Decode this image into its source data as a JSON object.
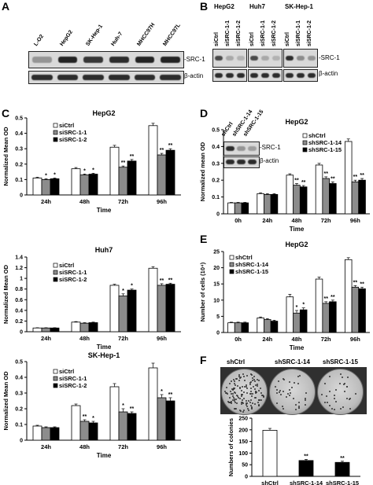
{
  "panels": {
    "A": {
      "letter": "A",
      "lanes": [
        "L-O2",
        "HepG2",
        "SK-Hep-1",
        "Huh-7",
        "MHCC97H",
        "MHCC97L"
      ],
      "labels": [
        "-SRC-1",
        "β-actin"
      ]
    },
    "B": {
      "letter": "B",
      "groups": [
        "HepG2",
        "Huh7",
        "SK-Hep-1"
      ],
      "lanes": [
        "siCtrl",
        "siSRC-1-1",
        "siSRC-1-2"
      ],
      "labels": [
        "-SRC-1",
        "β-actin"
      ]
    },
    "C": {
      "letter": "C"
    },
    "D": {
      "letter": "D",
      "inset_lanes": [
        "shCtrl",
        "shSRC-1-14",
        "shSRC-1-15"
      ],
      "inset_labels": [
        "-SRC-1",
        "β-actin"
      ]
    },
    "E": {
      "letter": "E"
    },
    "F": {
      "letter": "F",
      "plate_labels": [
        "shCtrl",
        "shSRC-1-14",
        "shSRC-1-15"
      ]
    }
  },
  "chart_data": [
    {
      "id": "C1",
      "type": "bar",
      "title": "HepG2",
      "xlabel": "Time",
      "ylabel": "Normalized Mean OD",
      "categories": [
        "24h",
        "48h",
        "72h",
        "96h"
      ],
      "ylim": [
        0,
        0.5
      ],
      "yticks": [
        0,
        0.1,
        0.2,
        0.3,
        0.4,
        0.5
      ],
      "series": [
        {
          "name": "siCtrl",
          "values": [
            0.11,
            0.17,
            0.31,
            0.45
          ],
          "errors": [
            0.005,
            0.008,
            0.012,
            0.015
          ]
        },
        {
          "name": "siSRC-1-1",
          "values": [
            0.1,
            0.13,
            0.18,
            0.26
          ],
          "errors": [
            0.005,
            0.006,
            0.008,
            0.01
          ]
        },
        {
          "name": "siSRC-1-2",
          "values": [
            0.105,
            0.135,
            0.22,
            0.29
          ],
          "errors": [
            0.005,
            0.006,
            0.01,
            0.01
          ]
        }
      ],
      "annotations": [
        [
          "",
          "*",
          "*"
        ],
        [
          "",
          "*",
          "*"
        ],
        [
          "",
          "**",
          "**"
        ],
        [
          "",
          "**",
          "**"
        ]
      ]
    },
    {
      "id": "C2",
      "type": "bar",
      "title": "Huh7",
      "xlabel": "Time",
      "ylabel": "Normalized Mean OD",
      "categories": [
        "24h",
        "48h",
        "72h",
        "96h"
      ],
      "ylim": [
        0,
        1.4
      ],
      "yticks": [
        0,
        0.2,
        0.4,
        0.6,
        0.8,
        1.0,
        1.2,
        1.4
      ],
      "series": [
        {
          "name": "siCtrl",
          "values": [
            0.07,
            0.18,
            0.87,
            1.19
          ],
          "errors": [
            0.005,
            0.01,
            0.02,
            0.03
          ]
        },
        {
          "name": "siSRC-1-1",
          "values": [
            0.07,
            0.16,
            0.67,
            0.87
          ],
          "errors": [
            0.005,
            0.01,
            0.04,
            0.03
          ]
        },
        {
          "name": "siSRC-1-2",
          "values": [
            0.07,
            0.17,
            0.78,
            0.89
          ],
          "errors": [
            0.005,
            0.01,
            0.02,
            0.02
          ]
        }
      ],
      "annotations": [
        [
          "",
          "",
          ""
        ],
        [
          "",
          "",
          ""
        ],
        [
          "",
          "*",
          "*"
        ],
        [
          "",
          "**",
          "**"
        ]
      ]
    },
    {
      "id": "C3",
      "type": "bar",
      "title": "SK-Hep-1",
      "xlabel": "Time",
      "ylabel": "Normalized Mean OD",
      "categories": [
        "24h",
        "48h",
        "72h",
        "96h"
      ],
      "ylim": [
        0,
        0.5
      ],
      "yticks": [
        0,
        0.1,
        0.2,
        0.3,
        0.4,
        0.5
      ],
      "series": [
        {
          "name": "siCtrl",
          "values": [
            0.09,
            0.22,
            0.34,
            0.46
          ],
          "errors": [
            0.005,
            0.01,
            0.02,
            0.03
          ]
        },
        {
          "name": "siSRC-1-1",
          "values": [
            0.08,
            0.12,
            0.18,
            0.27
          ],
          "errors": [
            0.005,
            0.01,
            0.02,
            0.02
          ]
        },
        {
          "name": "siSRC-1-2",
          "values": [
            0.08,
            0.11,
            0.17,
            0.25
          ],
          "errors": [
            0.005,
            0.01,
            0.01,
            0.02
          ]
        }
      ],
      "annotations": [
        [
          "",
          "",
          ""
        ],
        [
          "",
          "**",
          "*"
        ],
        [
          "",
          "*",
          "**"
        ],
        [
          "",
          "*",
          "**"
        ]
      ]
    },
    {
      "id": "D",
      "type": "bar",
      "title": "HepG2",
      "xlabel": "Time",
      "ylabel": "Normalized mean OD",
      "categories": [
        "0h",
        "24h",
        "48h",
        "72h",
        "96h"
      ],
      "ylim": [
        0,
        0.5
      ],
      "yticks": [
        0,
        0.1,
        0.2,
        0.3,
        0.4,
        0.5
      ],
      "series": [
        {
          "name": "shCtrl",
          "values": [
            0.065,
            0.12,
            0.23,
            0.29,
            0.43
          ],
          "errors": [
            0.003,
            0.005,
            0.008,
            0.01,
            0.015
          ]
        },
        {
          "name": "shSRC-1-14",
          "values": [
            0.065,
            0.115,
            0.17,
            0.21,
            0.19
          ],
          "errors": [
            0.003,
            0.005,
            0.01,
            0.01,
            0.01
          ]
        },
        {
          "name": "shSRC-1-15",
          "values": [
            0.065,
            0.115,
            0.16,
            0.18,
            0.2
          ],
          "errors": [
            0.003,
            0.005,
            0.008,
            0.01,
            0.01
          ]
        }
      ],
      "annotations": [
        [
          "",
          "",
          ""
        ],
        [
          "",
          "",
          ""
        ],
        [
          "",
          "**",
          "**"
        ],
        [
          "",
          "**",
          "**"
        ],
        [
          "",
          "**",
          "**"
        ]
      ]
    },
    {
      "id": "E",
      "type": "bar",
      "title": "HepG2",
      "xlabel": "Time",
      "ylabel": "Number of cells (10⁴)",
      "categories": [
        "0h",
        "24h",
        "48h",
        "72h",
        "96h"
      ],
      "ylim": [
        0,
        25
      ],
      "yticks": [
        0,
        5,
        10,
        15,
        20,
        25
      ],
      "series": [
        {
          "name": "shCtrl",
          "values": [
            3,
            4.5,
            11,
            16.5,
            22.5
          ],
          "errors": [
            0.2,
            0.3,
            0.8,
            0.6,
            0.6
          ]
        },
        {
          "name": "shSRC-1-14",
          "values": [
            3,
            4,
            6,
            9,
            14
          ],
          "errors": [
            0.2,
            0.3,
            0.8,
            0.5,
            0.5
          ]
        },
        {
          "name": "shSRC-1-15",
          "values": [
            3,
            3.5,
            7,
            9.5,
            13.5
          ],
          "errors": [
            0.2,
            0.3,
            0.6,
            0.5,
            0.5
          ]
        }
      ],
      "annotations": [
        [
          "",
          "",
          ""
        ],
        [
          "",
          "",
          ""
        ],
        [
          "",
          "*",
          "*"
        ],
        [
          "",
          "**",
          "**"
        ],
        [
          "",
          "**",
          "**"
        ]
      ]
    },
    {
      "id": "F",
      "type": "bar",
      "title": "",
      "xlabel": "",
      "ylabel": "Numbers of colonies",
      "categories": [
        "shCtrl",
        "shSRC-1-14",
        "shSRC-1-15"
      ],
      "ylim": [
        0,
        250
      ],
      "yticks": [
        0,
        50,
        100,
        150,
        200,
        250
      ],
      "series": [
        {
          "name": "",
          "values": [
            198,
            68,
            60
          ],
          "errors": [
            8,
            5,
            5
          ]
        }
      ],
      "annotations": [
        [
          ""
        ],
        [
          "**"
        ],
        [
          "**"
        ]
      ]
    }
  ]
}
